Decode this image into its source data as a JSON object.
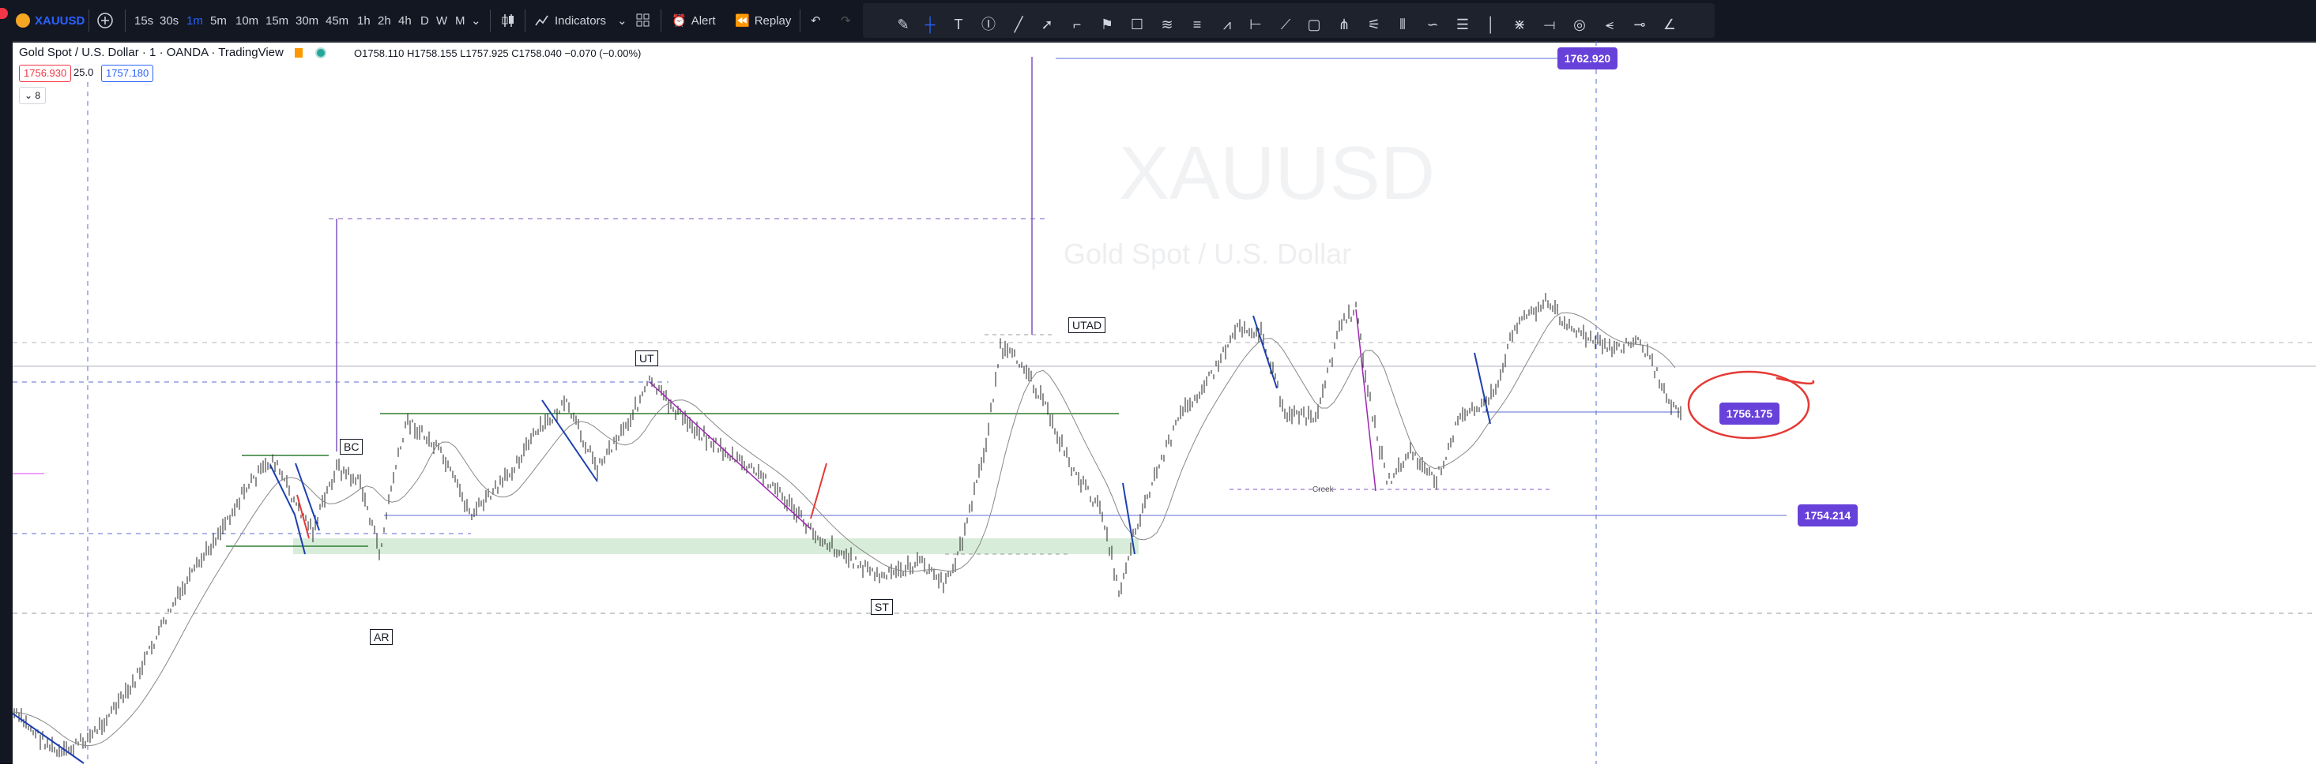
{
  "toolbar": {
    "symbol": "XAUUSD",
    "intervals": [
      "15s",
      "30s",
      "1m",
      "5m",
      "10m",
      "15m",
      "30m",
      "45m",
      "1h",
      "2h",
      "4h",
      "D",
      "W",
      "M"
    ],
    "active_interval": "1m",
    "indicators_label": "Indicators",
    "alert_label": "Alert",
    "replay_label": "Replay"
  },
  "legend": {
    "title": "Gold Spot / U.S. Dollar · 1 · OANDA · TradingView",
    "ohlc": "O1758.110 H1758.155 L1757.925 C1758.040 −0.070 (−0.00%)",
    "sell_price": "1756.930",
    "spread": "25.0",
    "buy_price": "1757.180",
    "collapse_count": "8"
  },
  "annotations": {
    "bc": "BC",
    "ar": "AR",
    "ut": "UT",
    "st": "ST",
    "utad": "UTAD",
    "creek": "Creek"
  },
  "price_labels": {
    "top": "1762.920",
    "circled": "1756.175",
    "lower": "1754.214"
  },
  "watermark": {
    "symbol": "XAUUSD",
    "name": "Gold Spot / U.S. Dollar"
  },
  "colors": {
    "background": "#ffffff",
    "toolbar": "#131722",
    "accent_blue": "#2962ff",
    "label_purple": "#6741d9",
    "annotation_red": "#e53935",
    "range_green": "#2e7d32"
  }
}
